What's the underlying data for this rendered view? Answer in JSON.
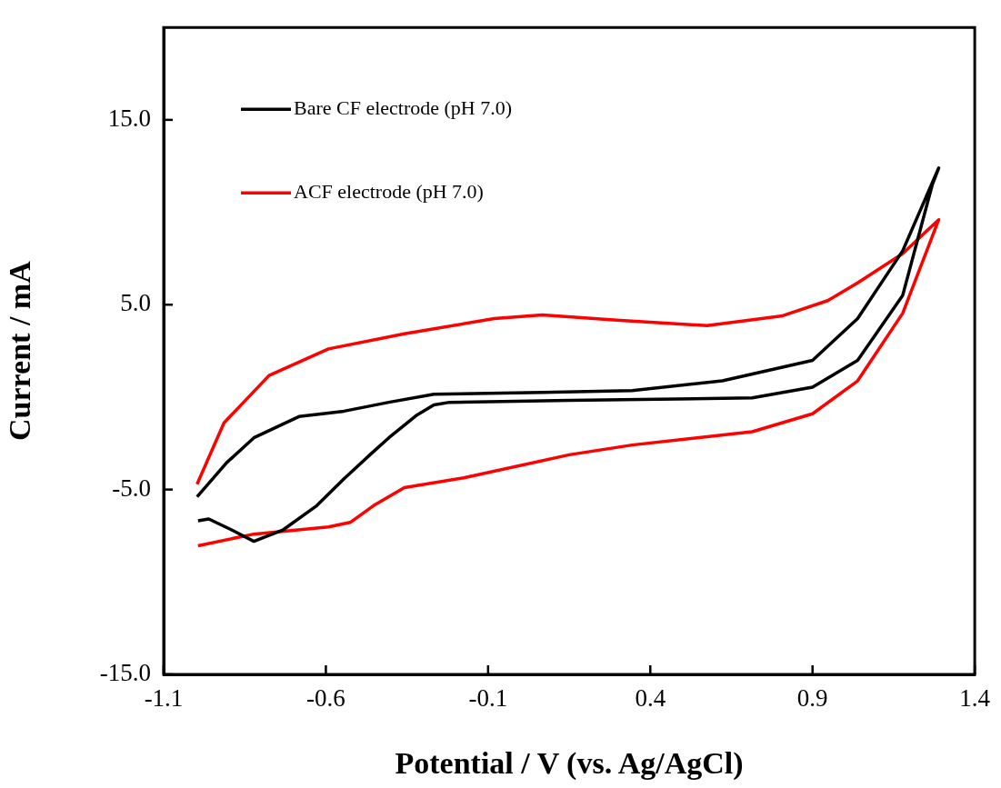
{
  "chart_data": {
    "type": "line",
    "xlabel": "Potential / V (vs. Ag/AgCl)",
    "ylabel": "Current / mA",
    "xlim": [
      -1.1,
      1.4
    ],
    "xticks": [
      -1.1,
      -0.6,
      -0.1,
      0.4,
      0.9,
      1.4
    ],
    "ylim": [
      -15,
      20
    ],
    "yticks": [
      {
        "value": -15,
        "label": "-15.0"
      },
      {
        "value": -5,
        "label": "-5.0"
      },
      {
        "value": 5,
        "label": "5.0"
      },
      {
        "value": 15,
        "label": "15.0"
      }
    ],
    "grid": false,
    "legend": "top left",
    "marker": "none",
    "line_style": "solid",
    "series": [
      {
        "name": "Bare CF electrode (pH 7.0)",
        "color": "#000000",
        "x": [
          -0.994,
          -0.961,
          -0.892,
          -0.822,
          -0.731,
          -0.628,
          -0.544,
          -0.461,
          -0.406,
          -0.322,
          -0.267,
          -0.219,
          0.15,
          0.714,
          0.9,
          1.039,
          1.178,
          1.269,
          1.289,
          1.178,
          1.039,
          0.9,
          0.622,
          0.344,
          0.067,
          -0.267,
          -0.406,
          -0.544,
          -0.683,
          -0.822,
          -0.906,
          -0.997
        ],
        "values": [
          -6.69,
          -6.59,
          -7.17,
          -7.8,
          -7.17,
          -5.87,
          -4.42,
          -3.07,
          -2.2,
          -1.0,
          -0.42,
          -0.28,
          -0.18,
          -0.04,
          0.54,
          1.99,
          5.51,
          11.48,
          12.4,
          7.92,
          4.25,
          1.99,
          0.88,
          0.35,
          0.25,
          0.16,
          -0.28,
          -0.76,
          -1.05,
          -2.2,
          -3.55,
          -5.39
        ]
      },
      {
        "name": "ACF electrode (pH 7.0)",
        "color": "#ff0000",
        "x": [
          -0.994,
          -0.822,
          -0.592,
          -0.525,
          -0.453,
          -0.358,
          -0.175,
          0.15,
          0.344,
          0.714,
          0.9,
          1.039,
          1.178,
          1.289,
          1.178,
          1.039,
          0.947,
          0.808,
          0.575,
          0.297,
          0.067,
          -0.081,
          -0.358,
          -0.592,
          -0.775,
          -0.914,
          -0.997
        ],
        "values": [
          -8.04,
          -7.41,
          -7.02,
          -6.78,
          -5.87,
          -4.9,
          -4.37,
          -3.12,
          -2.59,
          -1.87,
          -0.9,
          0.88,
          4.54,
          9.6,
          7.77,
          6.18,
          5.22,
          4.4,
          3.87,
          4.16,
          4.45,
          4.25,
          3.43,
          2.61,
          1.17,
          -1.39,
          -4.71
        ]
      }
    ]
  }
}
